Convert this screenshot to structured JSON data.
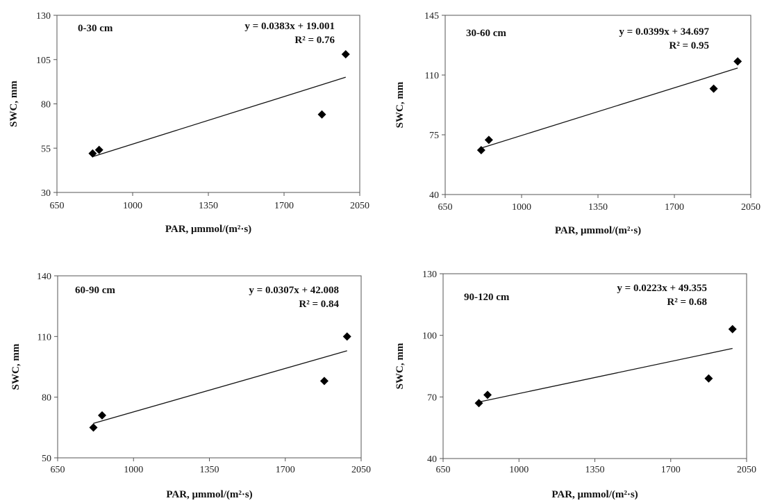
{
  "chart_data": [
    {
      "type": "scatter",
      "title": "",
      "xlabel": "PAR,  μmmol/(m²·s)",
      "ylabel": "SWC, mm",
      "xlim": [
        650,
        2050
      ],
      "ylim": [
        30,
        130
      ],
      "xticks": [
        650,
        1000,
        1350,
        1700,
        2050
      ],
      "yticks": [
        30,
        55,
        80,
        105,
        130
      ],
      "x_tick_labels": [
        "650",
        "1000",
        "1350",
        "1700",
        "2050"
      ],
      "y_tick_labels": [
        "30",
        "55",
        "80",
        "105",
        "130"
      ],
      "grid": false,
      "annotations": {
        "depth": "0-30 cm",
        "equation": "y = 0.0383x + 19.001",
        "r2": "R² = 0.76"
      },
      "trendline": {
        "slope": 0.0383,
        "intercept": 19.001
      },
      "points": [
        {
          "x": 815,
          "y": 52
        },
        {
          "x": 845,
          "y": 54
        },
        {
          "x": 1875,
          "y": 74
        },
        {
          "x": 1985,
          "y": 108
        }
      ]
    },
    {
      "type": "scatter",
      "title": "",
      "xlabel": "PAR,  μmmol/(m²·s)",
      "ylabel": "SWC, mm",
      "xlim": [
        650,
        2050
      ],
      "ylim": [
        40,
        145
      ],
      "xticks": [
        650,
        1000,
        1350,
        1700,
        2050
      ],
      "yticks": [
        40,
        75,
        110,
        145
      ],
      "x_tick_labels": [
        "650",
        "1000",
        "1350",
        "1700",
        "2050"
      ],
      "y_tick_labels": [
        "40",
        "75",
        "110",
        "145"
      ],
      "grid": false,
      "annotations": {
        "depth": "30-60 cm",
        "equation": "y = 0.0399x + 34.697",
        "r2": "R² = 0.95"
      },
      "trendline": {
        "slope": 0.0399,
        "intercept": 34.697
      },
      "points": [
        {
          "x": 815,
          "y": 66
        },
        {
          "x": 850,
          "y": 72
        },
        {
          "x": 1880,
          "y": 102
        },
        {
          "x": 1990,
          "y": 118
        }
      ]
    },
    {
      "type": "scatter",
      "title": "",
      "xlabel": "PAR,  μmmol/(m²·s)",
      "ylabel": "SWC, mm",
      "xlim": [
        650,
        2050
      ],
      "ylim": [
        50,
        140
      ],
      "xticks": [
        650,
        1000,
        1350,
        1700,
        2050
      ],
      "yticks": [
        50,
        80,
        110,
        140
      ],
      "x_tick_labels": [
        "650",
        "1000",
        "1350",
        "1700",
        "2050"
      ],
      "y_tick_labels": [
        "50",
        "80",
        "110",
        "140"
      ],
      "grid": false,
      "annotations": {
        "depth": "60-90 cm",
        "equation": "y = 0.0307x + 42.008",
        "r2": "R² = 0.84"
      },
      "trendline": {
        "slope": 0.0307,
        "intercept": 42.008
      },
      "points": [
        {
          "x": 815,
          "y": 65
        },
        {
          "x": 855,
          "y": 71
        },
        {
          "x": 1880,
          "y": 88
        },
        {
          "x": 1985,
          "y": 110
        }
      ]
    },
    {
      "type": "scatter",
      "title": "",
      "xlabel": "PAR,  μmmol/(m²·s)",
      "ylabel": "SWC, mm",
      "xlim": [
        650,
        2050
      ],
      "ylim": [
        40,
        130
      ],
      "xticks": [
        650,
        1000,
        1350,
        1700,
        2050
      ],
      "yticks": [
        40,
        70,
        100,
        130
      ],
      "x_tick_labels": [
        "650",
        "1000",
        "1350",
        "1700",
        "2050"
      ],
      "y_tick_labels": [
        "40",
        "70",
        "100",
        "130"
      ],
      "grid": false,
      "annotations": {
        "depth": "90-120 cm",
        "equation": "y = 0.0223x + 49.355",
        "r2": "R² = 0.68"
      },
      "trendline": {
        "slope": 0.0223,
        "intercept": 49.355
      },
      "points": [
        {
          "x": 815,
          "y": 67
        },
        {
          "x": 855,
          "y": 71
        },
        {
          "x": 1875,
          "y": 79
        },
        {
          "x": 1985,
          "y": 103
        }
      ]
    }
  ]
}
